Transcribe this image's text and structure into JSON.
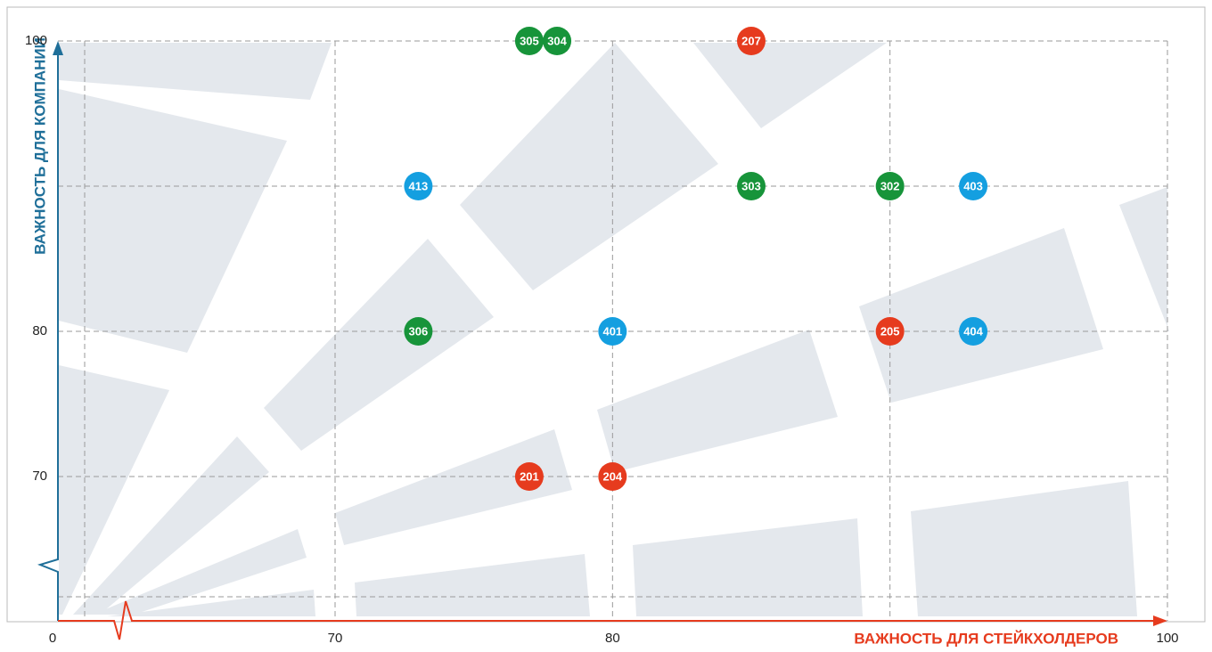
{
  "chart_data": {
    "type": "scatter",
    "y_label": "ВАЖНОСТЬ ДЛЯ КОМПАНИИ",
    "x_label": "ВАЖНОСТЬ ДЛЯ СТЕЙКХОЛДЕРОВ",
    "xlim": [
      70,
      100
    ],
    "ylim": [
      70,
      100
    ],
    "xticks": [
      0,
      70,
      80,
      100
    ],
    "yticks": [
      70,
      80,
      100
    ],
    "axis_break": true,
    "grid_x": [
      70,
      80,
      90,
      100
    ],
    "grid_y": [
      70,
      80,
      90,
      100
    ],
    "series": [
      {
        "color": "#e63b1e",
        "labels": [
          "207",
          "205",
          "201",
          "204"
        ],
        "x": [
          85,
          90,
          77,
          80
        ],
        "values": [
          100,
          80,
          70,
          70
        ]
      },
      {
        "color": "#17943a",
        "labels": [
          "305",
          "304",
          "303",
          "302",
          "306"
        ],
        "x": [
          77,
          78,
          85,
          90,
          73
        ],
        "values": [
          100,
          100,
          90,
          90,
          80
        ]
      },
      {
        "color": "#149fe0",
        "labels": [
          "413",
          "403",
          "401",
          "404"
        ],
        "x": [
          73,
          93,
          80,
          93
        ],
        "values": [
          90,
          90,
          80,
          80
        ]
      }
    ]
  }
}
